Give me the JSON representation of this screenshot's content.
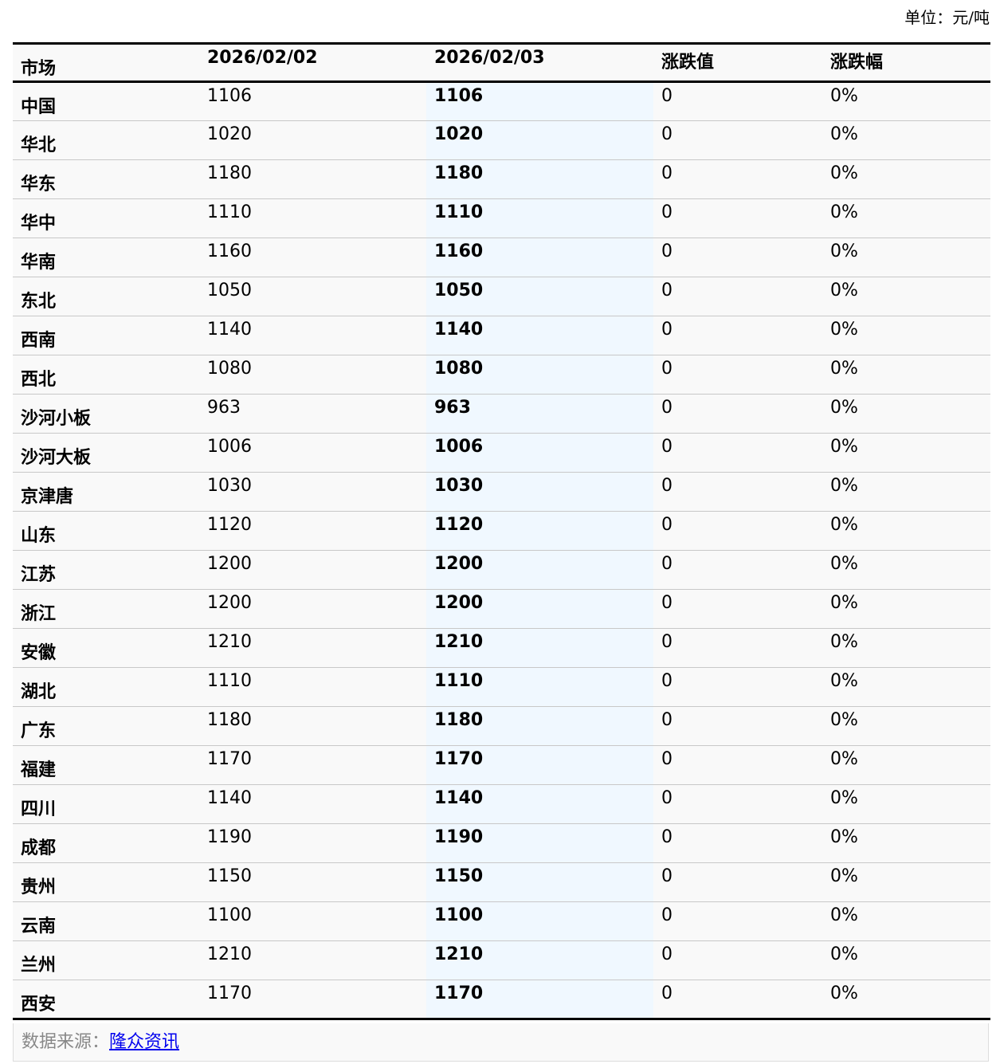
{
  "unit_label": "单位：元/吨",
  "headers": [
    "市场",
    "2026/02/02",
    "2026/02/03",
    "涨跌值",
    "涨跌幅"
  ],
  "rows": [
    [
      "中国",
      "1106",
      "1106",
      "0",
      "0%"
    ],
    [
      "华北",
      "1020",
      "1020",
      "0",
      "0%"
    ],
    [
      "华东",
      "1180",
      "1180",
      "0",
      "0%"
    ],
    [
      "华中",
      "1110",
      "1110",
      "0",
      "0%"
    ],
    [
      "华南",
      "1160",
      "1160",
      "0",
      "0%"
    ],
    [
      "东北",
      "1050",
      "1050",
      "0",
      "0%"
    ],
    [
      "西南",
      "1140",
      "1140",
      "0",
      "0%"
    ],
    [
      "西北",
      "1080",
      "1080",
      "0",
      "0%"
    ],
    [
      "沙河小板",
      "963",
      "963",
      "0",
      "0%"
    ],
    [
      "沙河大板",
      "1006",
      "1006",
      "0",
      "0%"
    ],
    [
      "京津唐",
      "1030",
      "1030",
      "0",
      "0%"
    ],
    [
      "山东",
      "1120",
      "1120",
      "0",
      "0%"
    ],
    [
      "江苏",
      "1200",
      "1200",
      "0",
      "0%"
    ],
    [
      "浙江",
      "1200",
      "1200",
      "0",
      "0%"
    ],
    [
      "安徽",
      "1210",
      "1210",
      "0",
      "0%"
    ],
    [
      "湖北",
      "1110",
      "1110",
      "0",
      "0%"
    ],
    [
      "广东",
      "1180",
      "1180",
      "0",
      "0%"
    ],
    [
      "福建",
      "1170",
      "1170",
      "0",
      "0%"
    ],
    [
      "四川",
      "1140",
      "1140",
      "0",
      "0%"
    ],
    [
      "成都",
      "1190",
      "1190",
      "0",
      "0%"
    ],
    [
      "贵州",
      "1150",
      "1150",
      "0",
      "0%"
    ],
    [
      "云南",
      "1100",
      "1100",
      "0",
      "0%"
    ],
    [
      "兰州",
      "1210",
      "1210",
      "0",
      "0%"
    ],
    [
      "西安",
      "1170",
      "1170",
      "0",
      "0%"
    ]
  ],
  "footer": {
    "source_label": "数据来源：",
    "source_link": "隆众资讯"
  },
  "colors": {
    "highlight_column": "#f0f8ff",
    "link": "#0000ee"
  }
}
